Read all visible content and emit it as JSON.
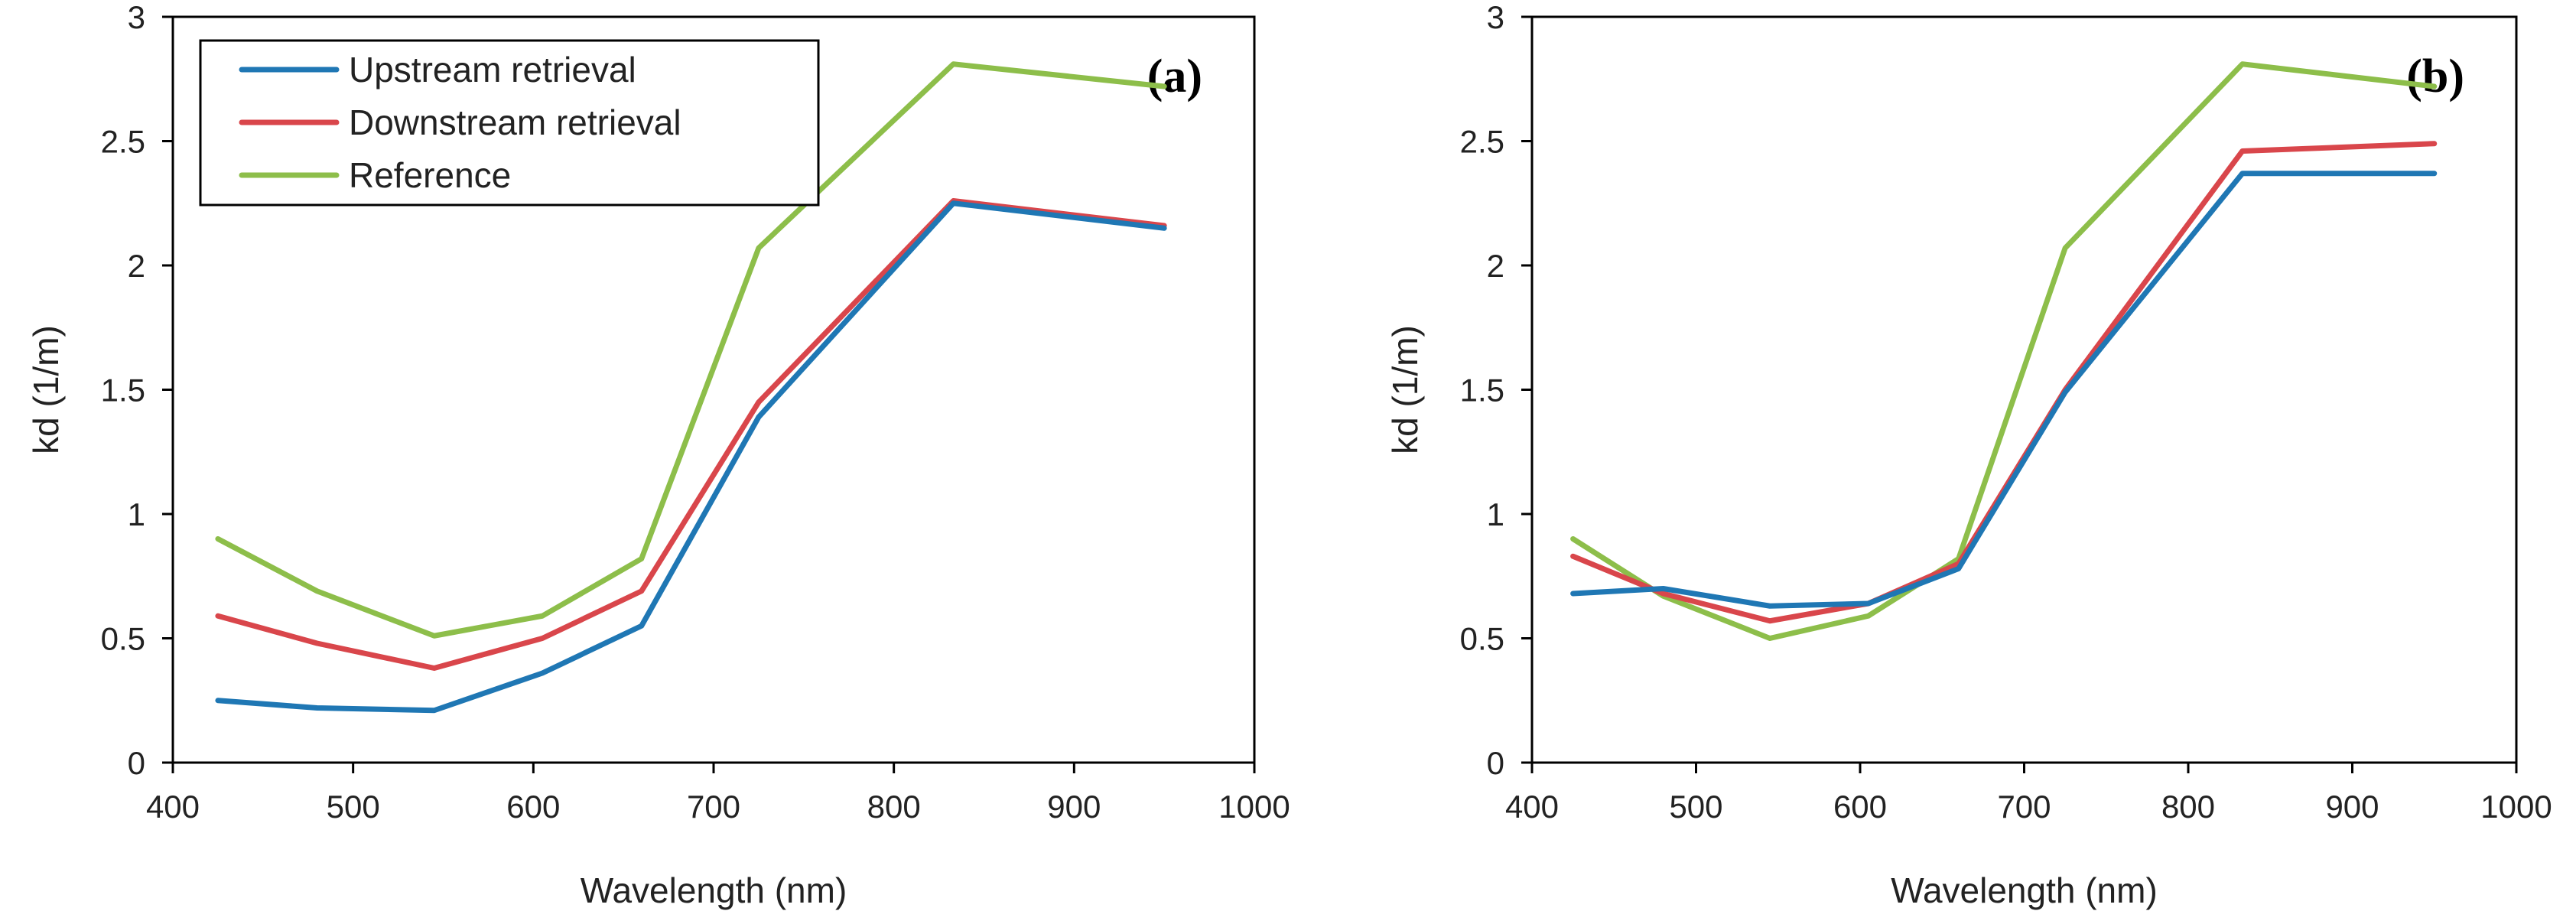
{
  "chart_data": [
    {
      "type": "line",
      "panel_label": "(a)",
      "xlabel": "Wavelength (nm)",
      "ylabel": "kd (1/m)",
      "xlim": [
        400,
        1000
      ],
      "ylim": [
        0,
        3
      ],
      "xticks": [
        "400",
        "500",
        "600",
        "700",
        "800",
        "900",
        "1000"
      ],
      "yticks": [
        "0",
        "0.5",
        "1",
        "1.5",
        "2",
        "2.5",
        "3"
      ],
      "grid": false,
      "legend": {
        "placement": "top-left"
      },
      "x": [
        425,
        480,
        545,
        605,
        660,
        725,
        833,
        950
      ],
      "series": [
        {
          "name": "Upstream retrieval",
          "color": "#1f77b4",
          "values": [
            0.25,
            0.22,
            0.21,
            0.36,
            0.55,
            1.39,
            2.25,
            2.15
          ]
        },
        {
          "name": "Downstream retrieval",
          "color": "#d9464b",
          "values": [
            0.59,
            0.48,
            0.38,
            0.5,
            0.69,
            1.45,
            2.26,
            2.16
          ]
        },
        {
          "name": "Reference",
          "color": "#8dbe4a",
          "values": [
            0.9,
            0.69,
            0.51,
            0.59,
            0.82,
            2.07,
            2.81,
            2.72
          ]
        }
      ]
    },
    {
      "type": "line",
      "panel_label": "(b)",
      "xlabel": "Wavelength (nm)",
      "ylabel": "kd (1/m)",
      "xlim": [
        400,
        1000
      ],
      "ylim": [
        0,
        3
      ],
      "xticks": [
        "400",
        "500",
        "600",
        "700",
        "800",
        "900",
        "1000"
      ],
      "yticks": [
        "0",
        "0.5",
        "1",
        "1.5",
        "2",
        "2.5",
        "3"
      ],
      "grid": false,
      "x": [
        425,
        480,
        545,
        605,
        660,
        725,
        833,
        950
      ],
      "series": [
        {
          "name": "Upstream retrieval",
          "color": "#1f77b4",
          "values": [
            0.68,
            0.7,
            0.63,
            0.64,
            0.78,
            1.49,
            2.37,
            2.37
          ]
        },
        {
          "name": "Downstream retrieval",
          "color": "#d9464b",
          "values": [
            0.83,
            0.68,
            0.57,
            0.64,
            0.8,
            1.5,
            2.46,
            2.49
          ]
        },
        {
          "name": "Reference",
          "color": "#8dbe4a",
          "values": [
            0.9,
            0.67,
            0.5,
            0.59,
            0.82,
            2.07,
            2.81,
            2.72
          ]
        }
      ]
    }
  ]
}
